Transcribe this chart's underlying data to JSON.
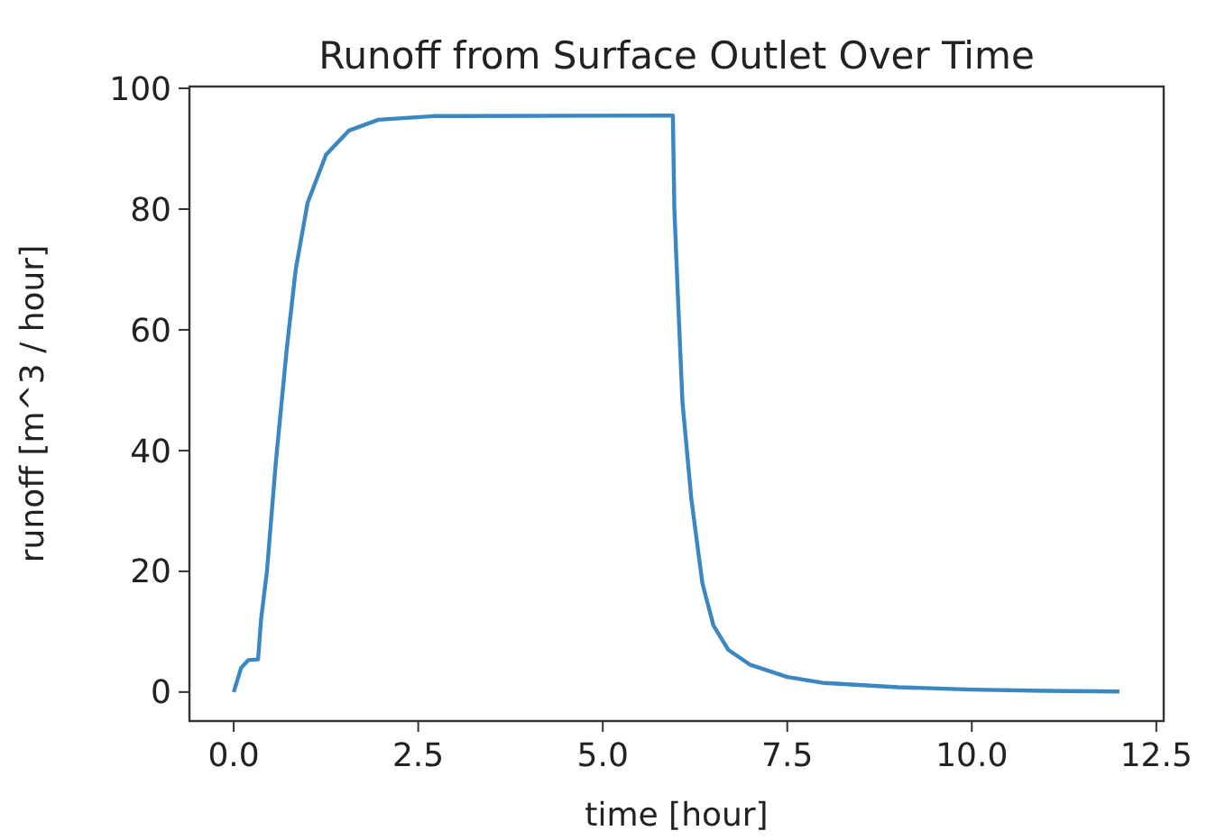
{
  "chart_data": {
    "type": "line",
    "title": "Runoff from Surface Outlet Over Time",
    "xlabel": "time [hour]",
    "ylabel": "runoff [m^3 / hour]",
    "xlim": [
      -0.6,
      12.6
    ],
    "xticks": [
      {
        "value": 0,
        "label": "0.0"
      },
      {
        "value": 2.5,
        "label": "2.5"
      },
      {
        "value": 5,
        "label": "5.0"
      },
      {
        "value": 7.5,
        "label": "7.5"
      },
      {
        "value": 10,
        "label": "10.0"
      },
      {
        "value": 12.5,
        "label": "12.5"
      }
    ],
    "ylim": [
      -4.8,
      100.3
    ],
    "yticks": [
      0,
      20,
      40,
      60,
      80,
      100
    ],
    "grid": false,
    "series": [
      {
        "color": "#3a87c2",
        "x": [
          0,
          0.1,
          0.2,
          0.33,
          0.37,
          0.45,
          0.57,
          0.72,
          0.84,
          1.0,
          1.25,
          1.56,
          1.96,
          2.7,
          5.95,
          5.97,
          6.02,
          6.08,
          6.2,
          6.35,
          6.5,
          6.7,
          7,
          7.5,
          8,
          9,
          10,
          11,
          12
        ],
        "values": [
          0,
          4,
          5.3,
          5.4,
          12,
          20,
          38,
          57,
          70,
          81,
          89,
          93,
          94.8,
          95.4,
          95.5,
          80,
          65,
          48,
          32,
          18,
          11,
          7,
          4.5,
          2.5,
          1.5,
          0.8,
          0.4,
          0.2,
          0.1
        ]
      }
    ]
  }
}
